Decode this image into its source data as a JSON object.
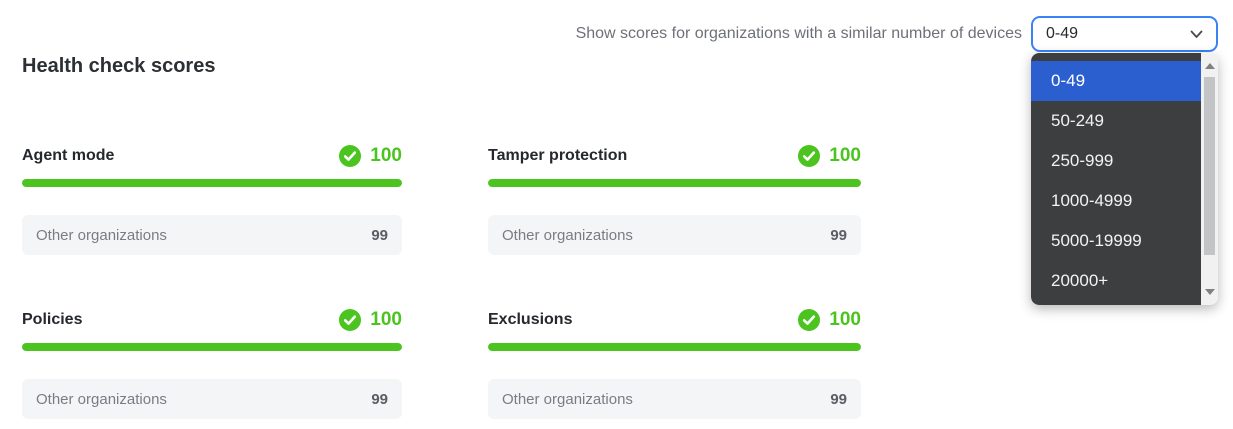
{
  "panel": {
    "title": "Health check scores",
    "filter": {
      "label": "Show scores for organizations with a similar number of devices",
      "selected": "0-49",
      "options": [
        "0-49",
        "50-249",
        "250-999",
        "1000-4999",
        "5000-19999",
        "20000+"
      ]
    },
    "cards": [
      {
        "title": "Agent mode",
        "score": "100",
        "score_percent": 100,
        "comparison_label": "Other organizations",
        "comparison_value": "99"
      },
      {
        "title": "Tamper protection",
        "score": "100",
        "score_percent": 100,
        "comparison_label": "Other organizations",
        "comparison_value": "99"
      },
      {
        "title": "Policies",
        "score": "100",
        "score_percent": 100,
        "comparison_label": "Other organizations",
        "comparison_value": "99"
      },
      {
        "title": "Exclusions",
        "score": "100",
        "score_percent": 100,
        "comparison_label": "Other organizations",
        "comparison_value": "99"
      }
    ],
    "colors": {
      "score_green": "#4bc41f",
      "select_border_blue": "#3b82f6",
      "menu_background": "#3c3e40",
      "selected_option_blue": "#2b5fd0",
      "comparison_row_background": "#f4f5f7"
    },
    "icons": {
      "check": "check-circle-icon",
      "chevron": "chevron-down-icon",
      "scroll_up": "scroll-up-icon",
      "scroll_down": "scroll-down-icon"
    }
  }
}
